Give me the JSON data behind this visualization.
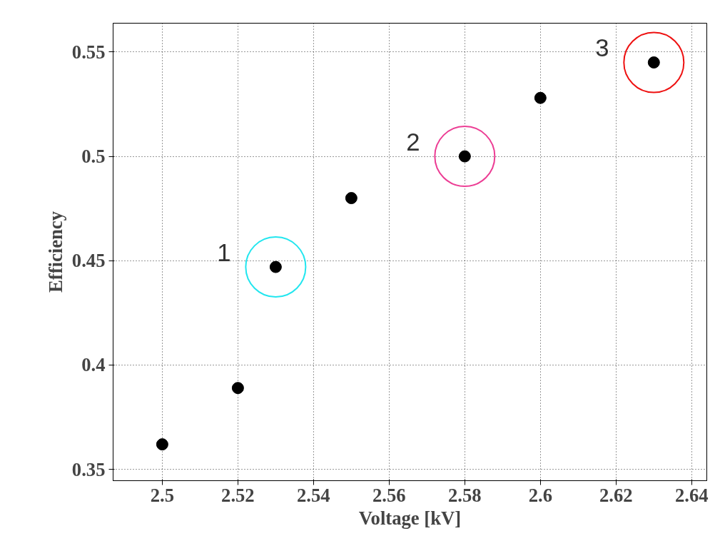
{
  "chart_data": {
    "type": "scatter",
    "xlabel": "Voltage [kV]",
    "ylabel": "Efficiency",
    "series": [
      {
        "x": [
          2.5,
          2.52,
          2.53,
          2.55,
          2.58,
          2.6,
          2.63
        ],
        "values": [
          0.362,
          0.389,
          0.447,
          0.48,
          0.5,
          0.528,
          0.545
        ],
        "color": "#000000",
        "marker": "circle"
      },
      {
        "x": [
          2.53,
          2.58,
          2.63
        ],
        "values": [
          0.447,
          0.5,
          0.545
        ],
        "colors": [
          "#22e6ef",
          "#ec3d94",
          "#ee1111"
        ],
        "marker": "circle"
      }
    ],
    "annotations": [
      {
        "text": "1",
        "x": 2.53,
        "y": 0.447
      },
      {
        "text": "2",
        "x": 2.58,
        "y": 0.5
      },
      {
        "text": "3",
        "x": 2.63,
        "y": 0.545
      }
    ],
    "xlim": [
      2.487,
      2.644
    ],
    "ylim": [
      0.3446,
      0.5638
    ],
    "xticks": [
      2.5,
      2.52,
      2.54,
      2.56,
      2.58,
      2.6,
      2.62,
      2.64
    ],
    "yticks": [
      0.35,
      0.4,
      0.45,
      0.5,
      0.55
    ],
    "grid": true
  }
}
